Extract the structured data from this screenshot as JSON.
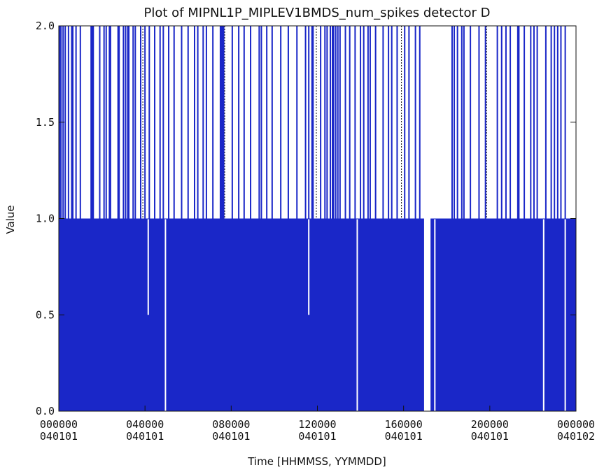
{
  "chart_data": {
    "type": "bar",
    "title": "Plot of MIPNL1P_MIPLEV1BMDS_num_spikes detector D",
    "xlabel": "Time [HHMMSS, YYMMDD]",
    "ylabel": "Value",
    "ylim": [
      0.0,
      2.0
    ],
    "xlim_hours": [
      0,
      24
    ],
    "y_ticks": [
      "0.0",
      "0.5",
      "1.0",
      "1.5",
      "2.0"
    ],
    "x_ticks": [
      {
        "time": "000000",
        "date": "040101"
      },
      {
        "time": "040000",
        "date": "040101"
      },
      {
        "time": "080000",
        "date": "040101"
      },
      {
        "time": "120000",
        "date": "040101"
      },
      {
        "time": "160000",
        "date": "040101"
      },
      {
        "time": "200000",
        "date": "040101"
      },
      {
        "time": "000000",
        "date": "040102"
      }
    ],
    "series_color": "#1a27c8",
    "baseline_value": 1.0,
    "value_2_hours": [
      0.04,
      0.1,
      0.2,
      0.3,
      0.45,
      0.6,
      0.65,
      0.8,
      1.0,
      1.5,
      1.55,
      1.6,
      1.9,
      2.1,
      2.2,
      2.35,
      2.4,
      2.75,
      2.8,
      3.0,
      3.1,
      3.2,
      3.25,
      3.45,
      3.55,
      3.8,
      4.0,
      4.2,
      4.45,
      4.7,
      4.85,
      5.1,
      5.35,
      5.7,
      6.0,
      6.3,
      6.45,
      6.7,
      6.85,
      7.15,
      7.5,
      7.55,
      7.6,
      7.65,
      8.05,
      8.35,
      8.6,
      8.9,
      9.3,
      9.4,
      9.65,
      9.9,
      10.3,
      10.65,
      11.05,
      11.45,
      11.6,
      11.75,
      11.8,
      12.15,
      12.35,
      12.45,
      12.6,
      12.7,
      12.75,
      12.85,
      12.95,
      13.05,
      13.3,
      13.5,
      13.75,
      14.0,
      14.15,
      14.35,
      14.45,
      14.7,
      15.05,
      15.3,
      15.45,
      15.7,
      16.05,
      16.25,
      16.55,
      16.75,
      18.25,
      18.35,
      18.5,
      18.7,
      18.8,
      19.1,
      19.5,
      19.8,
      20.35,
      20.55,
      20.75,
      20.95,
      21.3,
      21.35,
      21.6,
      21.9,
      22.05,
      22.2,
      22.6,
      22.85,
      23.0,
      23.15,
      23.3,
      23.5
    ],
    "value_0_5_hours": [
      4.15,
      11.6
    ],
    "value_0_hours": [
      4.95,
      13.85,
      17.45,
      22.5,
      23.5
    ],
    "gap_hours": [
      [
        16.95,
        17.25
      ]
    ],
    "dotted_hours": [
      3.9,
      7.7,
      11.95,
      15.9,
      19.85
    ]
  }
}
